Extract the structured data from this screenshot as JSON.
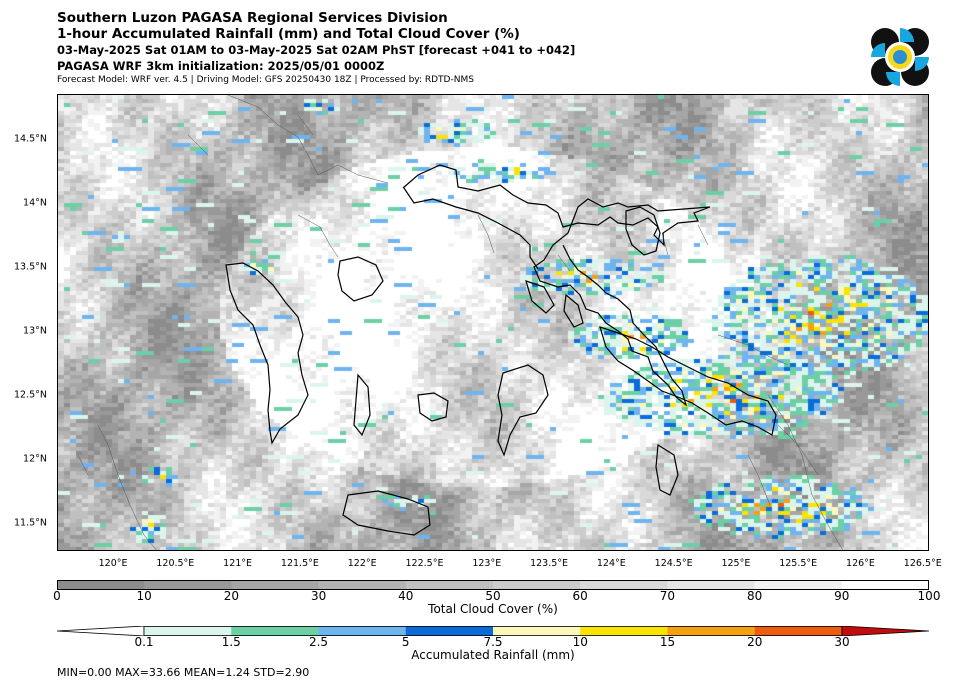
{
  "header": {
    "title_line1": "Southern Luzon PAGASA Regional Services Division",
    "title_line2": "1-hour Accumulated Rainfall (mm) and Total Cloud Cover (%)",
    "title_line3": "03-May-2025 Sat 01AM to 03-May-2025 Sat 02AM PhST [forecast +041 to +042]",
    "title_line4": "PAGASA WRF 3km initialization: 2025/05/01 0000Z",
    "credits": "Forecast Model: WRF ver. 4.5 | Driving Model: GFS 20250430 18Z | Processed by: RDTD-NMS"
  },
  "map": {
    "lat_ticks": [
      "14.5°N",
      "14°N",
      "13.5°N",
      "13°N",
      "12.5°N",
      "12°N",
      "11.5°N"
    ],
    "lat_values": [
      14.5,
      14.0,
      13.5,
      13.0,
      12.5,
      12.0,
      11.5
    ],
    "lon_ticks": [
      "120°E",
      "120.5°E",
      "121°E",
      "121.5°E",
      "122°E",
      "122.5°E",
      "123°E",
      "123.5°E",
      "124°E",
      "124.5°E",
      "125°E",
      "125.5°E",
      "126°E",
      "126.5°E"
    ],
    "lon_values": [
      120,
      120.5,
      121,
      121.5,
      122,
      122.5,
      123,
      123.5,
      124,
      124.5,
      125,
      125.5,
      126,
      126.5
    ],
    "lon_range": [
      119.55,
      126.55
    ],
    "lat_range": [
      11.28,
      14.85
    ]
  },
  "cloud_colorbar": {
    "labels": [
      "0",
      "10",
      "20",
      "30",
      "40",
      "50",
      "60",
      "70",
      "80",
      "90",
      "100"
    ],
    "colors": [
      "#8c8c8c",
      "#999999",
      "#a6a6a6",
      "#b3b3b3",
      "#c0c0c0",
      "#cccccc",
      "#d9d9d9",
      "#e5e5e5",
      "#f2f2f2",
      "#ffffff"
    ],
    "title": "Total Cloud Cover (%)"
  },
  "rain_colorbar": {
    "labels": [
      "0.1",
      "1.5",
      "2.5",
      "5",
      "7.5",
      "10",
      "15",
      "20",
      "30"
    ],
    "colors": [
      "#ffffff",
      "#dcf5ec",
      "#6ccfa5",
      "#6fb4ef",
      "#0a6cd8",
      "#fcf8bb",
      "#f9e400",
      "#f3a112",
      "#ed5b0c",
      "#c30c0c"
    ],
    "title": "Accumulated Rainfall (mm)"
  },
  "stats": "MIN=0.00   MAX=33.66   MEAN=1.24   STD=2.90"
}
